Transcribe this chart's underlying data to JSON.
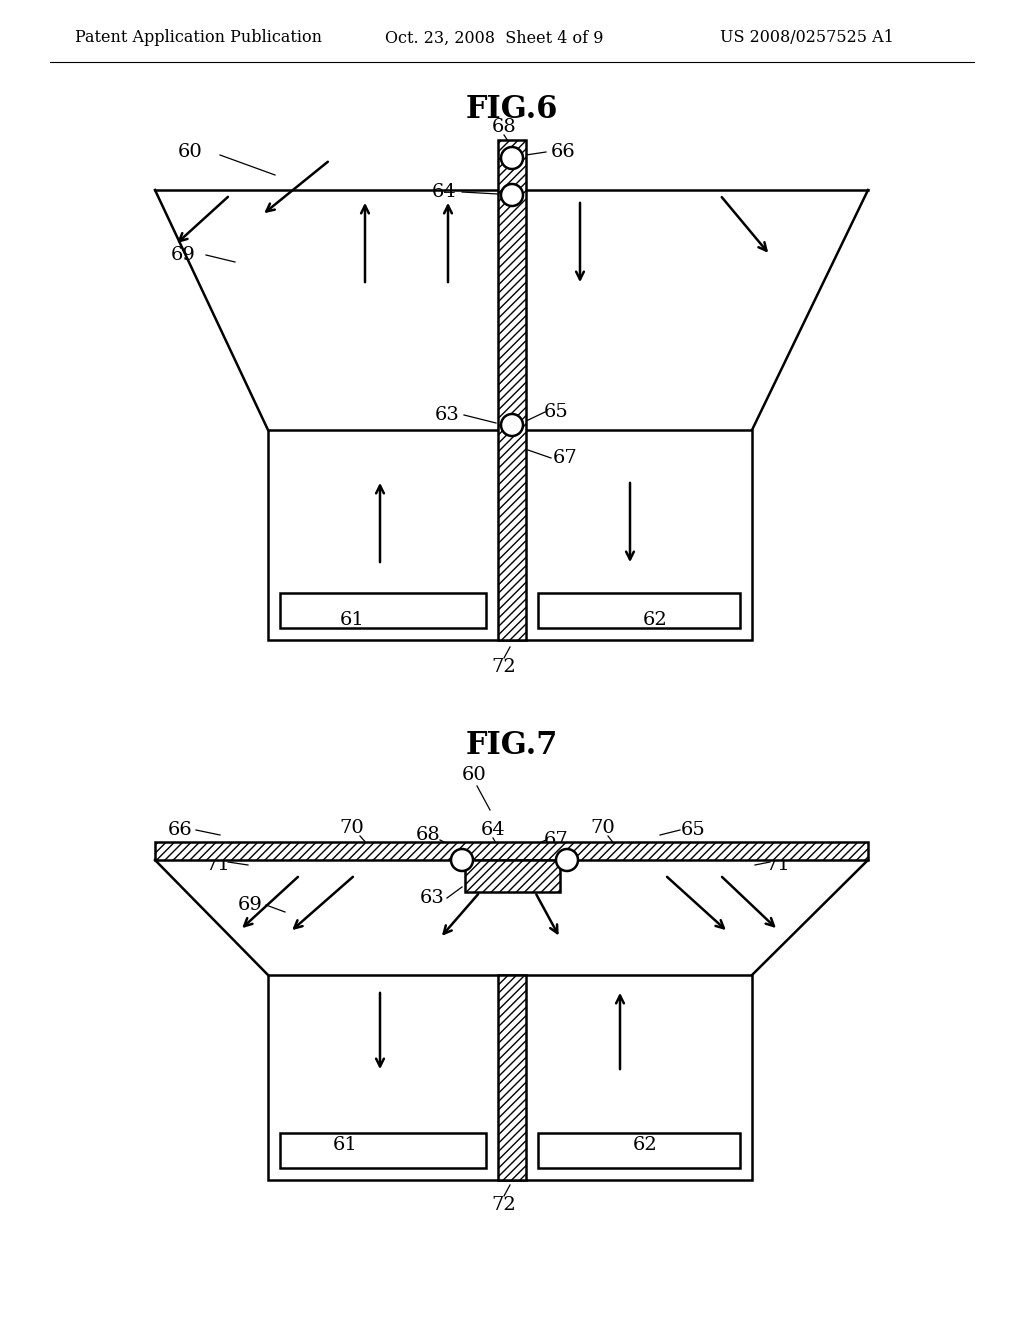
{
  "bg_color": "#ffffff",
  "line_color": "#000000",
  "header_left": "Patent Application Publication",
  "header_center": "Oct. 23, 2008  Sheet 4 of 9",
  "header_right": "US 2008/0257525 A1",
  "fig6_title": "FIG.6",
  "fig7_title": "FIG.7"
}
